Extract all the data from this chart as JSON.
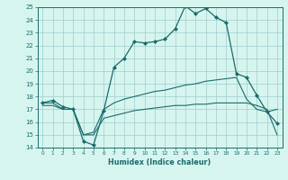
{
  "xlabel": "Humidex (Indice chaleur)",
  "xlim": [
    -0.5,
    23.5
  ],
  "ylim": [
    14,
    25
  ],
  "xticks": [
    0,
    1,
    2,
    3,
    4,
    5,
    6,
    7,
    8,
    9,
    10,
    11,
    12,
    13,
    14,
    15,
    16,
    17,
    18,
    19,
    20,
    21,
    22,
    23
  ],
  "yticks": [
    14,
    15,
    16,
    17,
    18,
    19,
    20,
    21,
    22,
    23,
    24,
    25
  ],
  "background_color": "#d6f5ef",
  "grid_color": "#a0cccc",
  "line_color": "#1a6b6b",
  "line1_x": [
    0,
    1,
    2,
    3,
    4,
    5,
    6,
    7,
    8,
    9,
    10,
    11,
    12,
    13,
    14,
    15,
    16,
    17,
    18,
    19,
    20,
    21,
    22,
    23
  ],
  "line1_y": [
    17.5,
    17.7,
    17.2,
    17.0,
    14.5,
    14.2,
    16.9,
    20.3,
    21.0,
    22.3,
    22.2,
    22.3,
    22.5,
    23.3,
    25.1,
    24.5,
    24.9,
    24.2,
    23.8,
    19.8,
    19.5,
    18.1,
    16.8,
    15.9
  ],
  "line2_x": [
    0,
    1,
    2,
    3,
    4,
    5,
    6,
    7,
    8,
    9,
    10,
    11,
    12,
    13,
    14,
    15,
    16,
    17,
    18,
    19,
    20,
    21,
    22,
    23
  ],
  "line2_y": [
    17.5,
    17.5,
    17.0,
    17.0,
    15.0,
    15.2,
    17.0,
    17.5,
    17.8,
    18.0,
    18.2,
    18.4,
    18.5,
    18.7,
    18.9,
    19.0,
    19.2,
    19.3,
    19.4,
    19.5,
    17.8,
    17.0,
    16.8,
    17.0
  ],
  "line3_x": [
    0,
    1,
    2,
    3,
    4,
    5,
    6,
    7,
    8,
    9,
    10,
    11,
    12,
    13,
    14,
    15,
    16,
    17,
    18,
    19,
    20,
    21,
    22,
    23
  ],
  "line3_y": [
    17.3,
    17.3,
    17.0,
    17.0,
    15.0,
    15.0,
    16.3,
    16.5,
    16.7,
    16.9,
    17.0,
    17.1,
    17.2,
    17.3,
    17.3,
    17.4,
    17.4,
    17.5,
    17.5,
    17.5,
    17.5,
    17.3,
    17.0,
    15.0
  ]
}
